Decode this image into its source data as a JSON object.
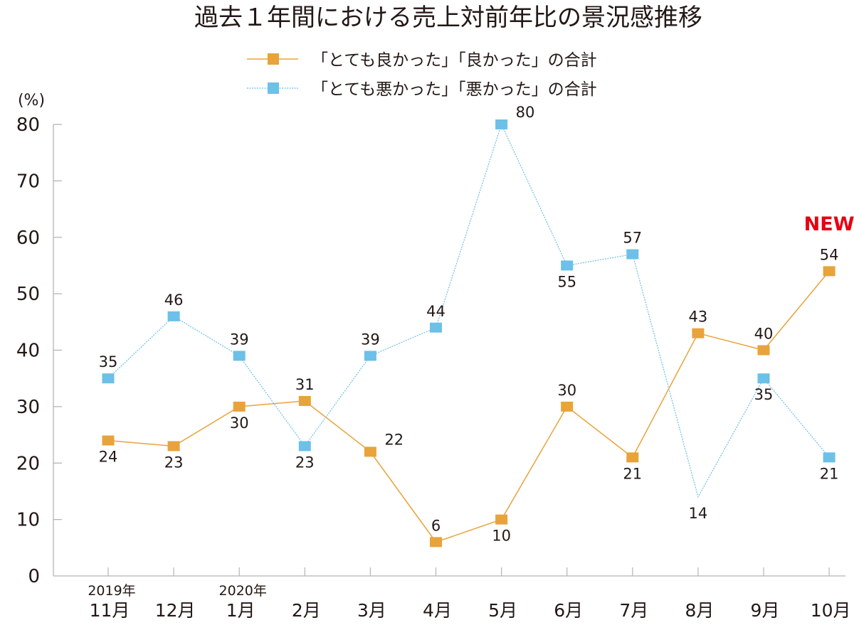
{
  "chart_data": {
    "type": "line",
    "title": "過去１年間における売上対前年比の景況感推移",
    "ylabel": "(%)",
    "xlabel": "",
    "ylim": [
      0,
      80
    ],
    "yticks": [
      0,
      10,
      20,
      30,
      40,
      50,
      60,
      70,
      80
    ],
    "grid": false,
    "legend_position": "top-center",
    "categories": [
      "11月",
      "12月",
      "1月",
      "2月",
      "3月",
      "4月",
      "5月",
      "6月",
      "7月",
      "8月",
      "9月",
      "10月"
    ],
    "year_labels": [
      {
        "category_index": 0,
        "text": "2019年"
      },
      {
        "category_index": 2,
        "text": "2020年"
      }
    ],
    "series": [
      {
        "name": "「とても良かった」「良かった」の合計",
        "color": "#E8A33A",
        "line_style": "solid",
        "marker": "square",
        "values": [
          24,
          23,
          30,
          31,
          22,
          6,
          10,
          30,
          21,
          43,
          40,
          54
        ],
        "label_positions": [
          "below",
          "below",
          "below",
          "above",
          "right",
          "above",
          "below",
          "above",
          "below",
          "above",
          "above",
          "above"
        ],
        "markers_hidden": []
      },
      {
        "name": "「とても悪かった」「悪かった」の合計",
        "color": "#6DC0E8",
        "line_style": "dotted",
        "marker": "square",
        "values": [
          35,
          46,
          39,
          23,
          39,
          44,
          80,
          55,
          57,
          14,
          35,
          21
        ],
        "label_positions": [
          "above",
          "above",
          "above",
          "below",
          "above",
          "above",
          "right",
          "below",
          "above",
          "below",
          "below",
          "below"
        ],
        "markers_hidden": [
          9
        ]
      }
    ],
    "annotations": [
      {
        "text": "NEW",
        "category_index": 11,
        "color": "#E60012"
      }
    ]
  }
}
